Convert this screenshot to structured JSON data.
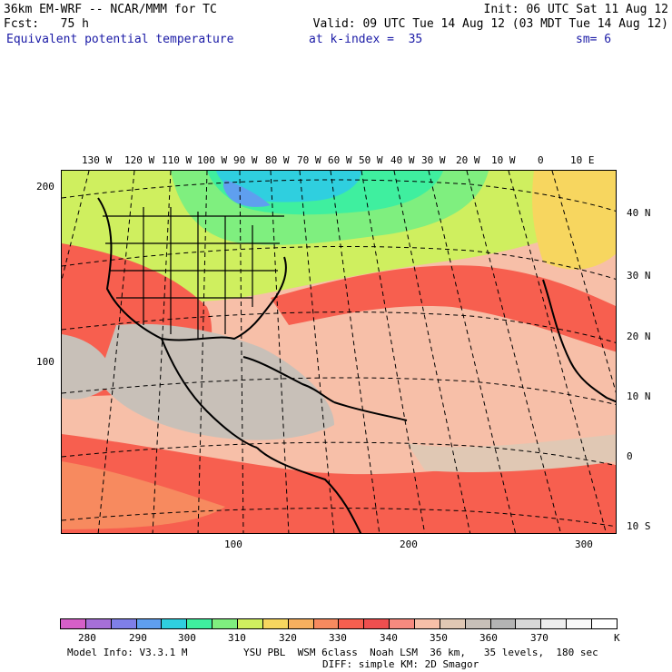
{
  "header": {
    "line1_left": "36km EM-WRF -- NCAR/MMM for TC",
    "line1_right": "Init: 06 UTC Sat 11 Aug 12",
    "line2_left": "Fcst:   75 h",
    "line2_right": "Valid: 09 UTC Tue 14 Aug 12 (03 MDT Tue 14 Aug 12)",
    "field": "Equivalent potential temperature",
    "level": "at k-index =  35",
    "smoothing": "sm= 6"
  },
  "map": {
    "top_lon_labels": [
      "130 W",
      "120 W",
      "110 W",
      "100 W",
      "90 W",
      "80 W",
      "70 W",
      "60 W",
      "50 W",
      "40 W",
      "30 W",
      "20 W",
      "10 W",
      "0",
      "10 E"
    ],
    "right_lat_labels": [
      "40 N",
      "30 N",
      "20 N",
      "10 N",
      "0",
      "10 S"
    ],
    "left_grid_labels": [
      "200",
      "100"
    ],
    "bottom_grid_labels": [
      "100",
      "200",
      "300"
    ]
  },
  "legend": {
    "colors": [
      "#d65fc8",
      "#a66fd8",
      "#7f7fe8",
      "#5f9fef",
      "#2fcfdf",
      "#3fef9f",
      "#7fef7f",
      "#cfef5f",
      "#f7d65f",
      "#f7b05f",
      "#f78a5f",
      "#f75f4f",
      "#ef4f4f",
      "#f78a7f",
      "#f7bfa8",
      "#e0c8b4",
      "#c8c0b8",
      "#b4b4b4",
      "#d8d8d8",
      "#eeeeee",
      "#f8f8f8",
      "#ffffff"
    ],
    "labels": [
      "280",
      "290",
      "300",
      "310",
      "320",
      "330",
      "340",
      "350",
      "360",
      "370"
    ],
    "unit": "K"
  },
  "footer": {
    "model_info": "Model Info: V3.3.1 M",
    "physics": "YSU PBL  WSM 6class  Noah LSM  36 km,   35 levels,  180 sec",
    "dynamics": "DIFF: simple KM: 2D Smagor"
  }
}
